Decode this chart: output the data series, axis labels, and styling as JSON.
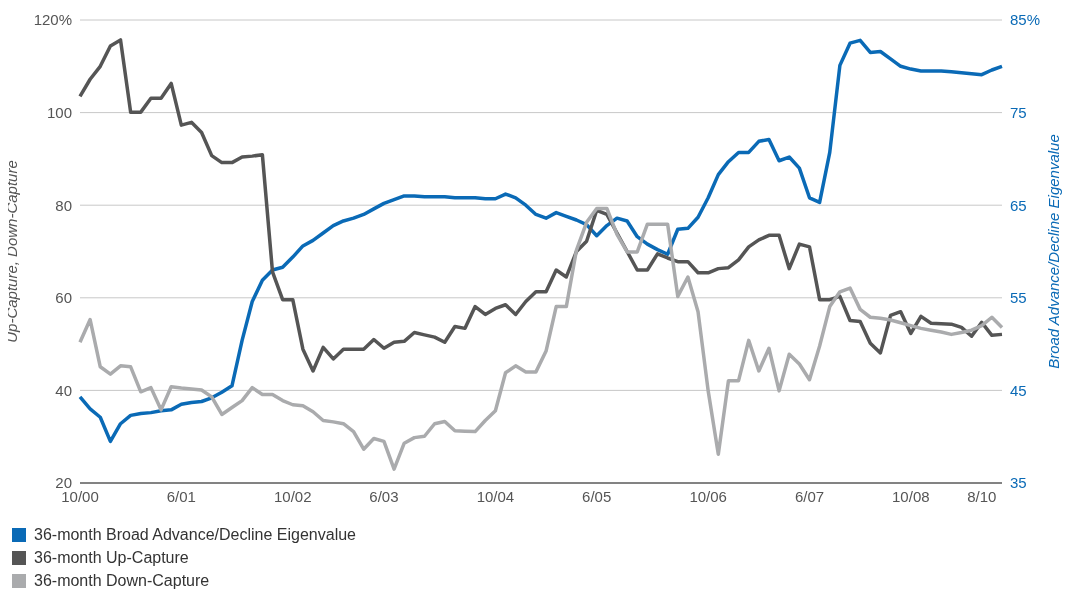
{
  "chart_data": {
    "type": "line",
    "ylabel": "Up-Capture, Down-Capture",
    "y2label": "Broad Advance/Decline Eigenvalue",
    "categories": [
      "10/00",
      null,
      null,
      null,
      null,
      null,
      null,
      null,
      null,
      null,
      "6/01",
      null,
      null,
      null,
      null,
      null,
      null,
      null,
      null,
      null,
      null,
      "10/02",
      null,
      null,
      null,
      null,
      null,
      null,
      null,
      null,
      "6/03",
      null,
      null,
      null,
      null,
      null,
      null,
      null,
      null,
      null,
      null,
      "10/04",
      null,
      null,
      null,
      null,
      null,
      null,
      null,
      null,
      null,
      "6/05",
      null,
      null,
      null,
      null,
      null,
      null,
      null,
      null,
      null,
      null,
      "10/06",
      null,
      null,
      null,
      null,
      null,
      null,
      null,
      null,
      null,
      "6/07",
      null,
      null,
      null,
      null,
      null,
      null,
      null,
      null,
      null,
      "10/08",
      null,
      null,
      null,
      null,
      null,
      null,
      "8/10",
      null,
      null
    ],
    "ylim": [
      20,
      120
    ],
    "yticks": [
      20,
      40,
      60,
      80,
      100,
      {
        "value": 120,
        "label": "120%"
      }
    ],
    "y2lim": [
      35,
      85
    ],
    "y2ticks": [
      35,
      45,
      55,
      65,
      75,
      {
        "value": 85,
        "label": "85%"
      }
    ],
    "grid": "y",
    "legend": "bottom left",
    "series": [
      {
        "name": "36-month Broad Advance/Decline Eigenvalue",
        "color": "#0a6ab6",
        "axis": "y2",
        "values": [
          44.3,
          43,
          42.1,
          39.5,
          41.4,
          42.3,
          42.5,
          42.6,
          42.8,
          42.9,
          43.5,
          43.7,
          43.8,
          44.2,
          44.8,
          45.5,
          50.4,
          54.6,
          56.9,
          58,
          58.3,
          59.4,
          60.6,
          61.2,
          62,
          62.8,
          63.3,
          63.6,
          64,
          64.6,
          65.2,
          65.6,
          66,
          66,
          65.9,
          65.9,
          65.9,
          65.8,
          65.8,
          65.8,
          65.7,
          65.7,
          66.2,
          65.8,
          65,
          64,
          63.6,
          64.2,
          63.8,
          63.4,
          62.9,
          61.7,
          62.8,
          63.6,
          63.3,
          61.6,
          60.8,
          60.2,
          59.7,
          62.4,
          62.5,
          63.7,
          65.8,
          68.3,
          69.7,
          70.7,
          70.7,
          71.9,
          72.1,
          69.8,
          70.2,
          69,
          65.8,
          65.3,
          70.7,
          80.1,
          82.5,
          82.8,
          81.5,
          81.6,
          80.8,
          80,
          79.7,
          79.5,
          79.5,
          79.5,
          79.4,
          79.3,
          79.2,
          79.1,
          79.6,
          80
        ]
      },
      {
        "name": "36-month Up-Capture",
        "color": "#555555",
        "axis": "y",
        "values": [
          103.5,
          107.2,
          110,
          114.4,
          115.7,
          100.1,
          100.1,
          103.1,
          103.1,
          106.3,
          97.3,
          97.9,
          95.7,
          90.7,
          89.2,
          89.2,
          90.4,
          90.6,
          90.9,
          65.6,
          59.6,
          59.6,
          48.9,
          44.2,
          49.3,
          46.8,
          48.9,
          48.9,
          48.9,
          51,
          49.1,
          50.4,
          50.6,
          52.5,
          52,
          51.5,
          50.4,
          53.8,
          53.4,
          58.1,
          56.4,
          57.7,
          58.5,
          56.4,
          59.2,
          61.3,
          61.3,
          66,
          64.5,
          70,
          72.2,
          78.9,
          78,
          74,
          70,
          66,
          66,
          69.5,
          68.6,
          67.8,
          67.8,
          65.4,
          65.4,
          66.3,
          66.5,
          68.2,
          71,
          72.5,
          73.5,
          73.5,
          66.3,
          71.6,
          71,
          59.6,
          59.6,
          60.3,
          55.1,
          54.9,
          50.2,
          48.1,
          56.2,
          57,
          52.3,
          56,
          54.5,
          54.4,
          54.3,
          53.6,
          51.7,
          54.7,
          51.9,
          52.1
        ]
      },
      {
        "name": "36-month Down-Capture",
        "color": "#aaabad",
        "axis": "y",
        "values": [
          50.4,
          55.3,
          45.1,
          43.5,
          45.3,
          45.1,
          39.7,
          40.6,
          35.8,
          40.8,
          40.5,
          40.3,
          40.1,
          38.6,
          34.8,
          36.3,
          37.8,
          40.6,
          39.1,
          39.1,
          37.8,
          36.9,
          36.7,
          35.4,
          33.5,
          33.2,
          32.8,
          31.1,
          27.3,
          29.6,
          29,
          23,
          28.6,
          29.8,
          30.1,
          32.8,
          33.3,
          31.3,
          31.2,
          31.1,
          33.5,
          35.6,
          43.8,
          45.3,
          44,
          44,
          48.5,
          58.1,
          58.1,
          70.3,
          76.3,
          79.3,
          79.3,
          73.7,
          69.9,
          69.9,
          75.9,
          75.9,
          75.9,
          60.3,
          64.5,
          57,
          39.9,
          26.2,
          42.1,
          42.1,
          50.8,
          44.2,
          49.1,
          39.9,
          47.8,
          45.7,
          42.3,
          49.6,
          58.1,
          61.3,
          62.1,
          57.5,
          55.8,
          55.6,
          55.2,
          54.6,
          54,
          53.4,
          53,
          52.6,
          52.1,
          52.5,
          53,
          54,
          55.8,
          53.6
        ]
      }
    ]
  }
}
